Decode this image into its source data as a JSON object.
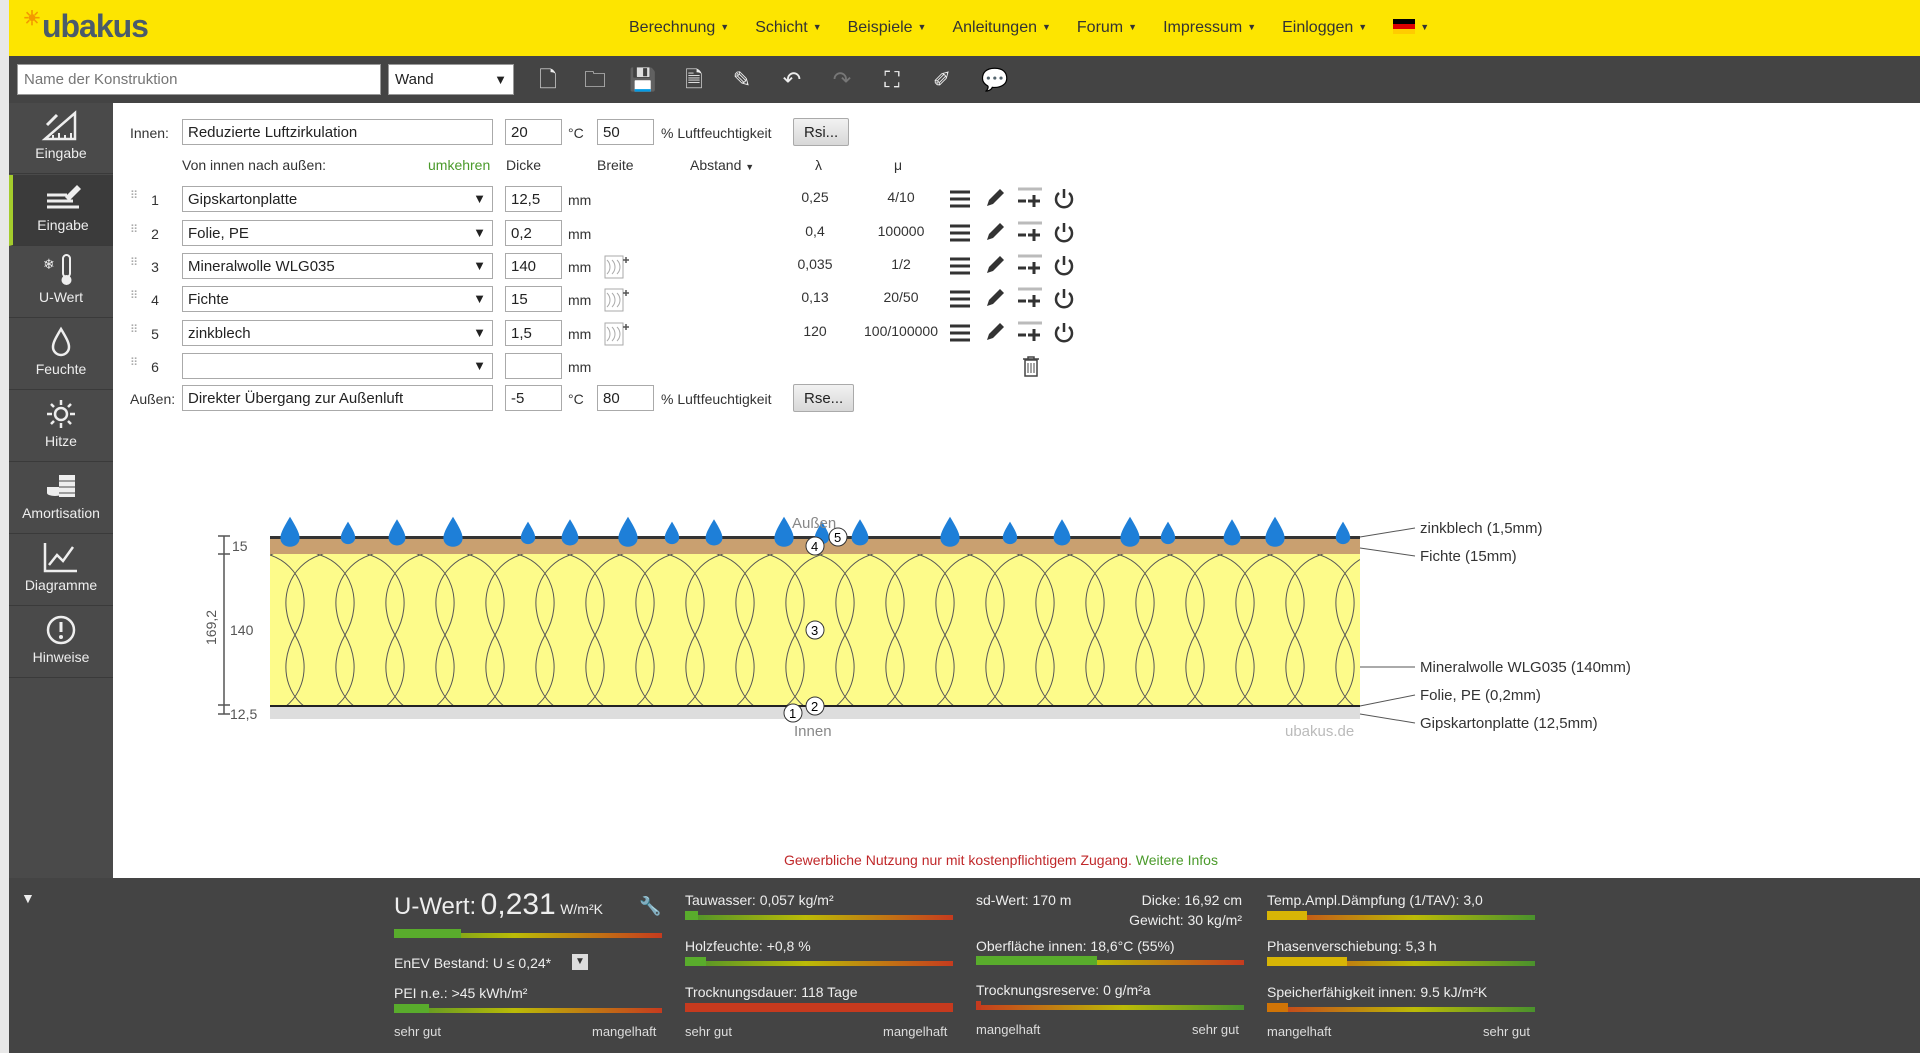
{
  "logo": "ubakus",
  "nav": [
    {
      "label": "Berechnung"
    },
    {
      "label": "Schicht"
    },
    {
      "label": "Beispiele"
    },
    {
      "label": "Anleitungen"
    },
    {
      "label": "Forum"
    },
    {
      "label": "Impressum"
    },
    {
      "label": "Einloggen"
    }
  ],
  "toolbar": {
    "name_placeholder": "Name der Konstruktion",
    "type_value": "Wand",
    "icons": [
      "new-file-icon",
      "open-folder-icon",
      "save-icon",
      "pdf-icon",
      "edit-icon",
      "undo-icon",
      "redo-icon",
      "fullscreen-icon",
      "brush-icon",
      "comment-icon"
    ]
  },
  "sidebar": [
    {
      "label": "Eingabe",
      "icon": "ruler-icon"
    },
    {
      "label": "Eingabe",
      "icon": "layers-edit-icon"
    },
    {
      "label": "U-Wert",
      "icon": "thermometer-icon"
    },
    {
      "label": "Feuchte",
      "icon": "drop-icon"
    },
    {
      "label": "Hitze",
      "icon": "sun-icon"
    },
    {
      "label": "Amortisation",
      "icon": "coins-icon"
    },
    {
      "label": "Diagramme",
      "icon": "chart-icon"
    },
    {
      "label": "Hinweise",
      "icon": "alert-icon"
    }
  ],
  "form": {
    "innen_label": "Innen:",
    "innen_value": "Reduzierte Luftzirkulation",
    "innen_temp": "20",
    "innen_hum": "50",
    "temp_unit": "°C",
    "hum_label": "% Luftfeuchtigkeit",
    "rsi_button": "Rsi...",
    "direction_label": "Von innen nach außen:",
    "reverse_link": "umkehren",
    "col_dicke": "Dicke",
    "col_breite": "Breite",
    "col_abstand": "Abstand",
    "col_lambda": "λ",
    "col_mu": "μ",
    "unit_mm": "mm",
    "layers": [
      {
        "no": "1",
        "material": "Gipskartonplatte",
        "dicke": "12,5",
        "lambda": "0,25",
        "mu": "4/10"
      },
      {
        "no": "2",
        "material": "Folie, PE",
        "dicke": "0,2",
        "lambda": "0,4",
        "mu": "100000"
      },
      {
        "no": "3",
        "material": "Mineralwolle WLG035",
        "dicke": "140",
        "lambda": "0,035",
        "mu": "1/2"
      },
      {
        "no": "4",
        "material": "Fichte",
        "dicke": "15",
        "lambda": "0,13",
        "mu": "20/50"
      },
      {
        "no": "5",
        "material": "zinkblech",
        "dicke": "1,5",
        "lambda": "120",
        "mu": "100/100000"
      },
      {
        "no": "6",
        "material": "",
        "dicke": "",
        "lambda": "",
        "mu": ""
      }
    ],
    "aussen_label": "Außen:",
    "aussen_value": "Direkter Übergang zur Außenluft",
    "aussen_temp": "-5",
    "aussen_hum": "80",
    "rse_button": "Rse..."
  },
  "diagram": {
    "label_aussen": "Außen",
    "label_innen": "Innen",
    "watermark": "ubakus.de",
    "total": "169,2",
    "dim_15": "15",
    "dim_140": "140",
    "dim_125": "12,5",
    "legend": [
      "zinkblech (1,5mm)",
      "Fichte (15mm)",
      "Mineralwolle WLG035 (140mm)",
      "Folie, PE (0,2mm)",
      "Gipskartonplatte (12,5mm)"
    ],
    "markers": [
      "1",
      "2",
      "3",
      "4",
      "5"
    ]
  },
  "notice": {
    "text": "Gewerbliche Nutzung nur mit kostenpflichtigem Zugang.",
    "link": "Weitere Infos"
  },
  "results": {
    "uwert_label": "U-Wert:",
    "uwert_value": "0,231",
    "uwert_unit": "W/m²K",
    "enev": "EnEV Bestand: U ≤ 0,24*",
    "pei": "PEI n.e.: >45 kWh/m²",
    "tauwasser": "Tauwasser: 0,057 kg/m²",
    "holzfeuchte": "Holzfeuchte: +0,8 %",
    "trocknungsdauer": "Trocknungsdauer: 118 Tage",
    "sdwert": "sd-Wert: 170 m",
    "dicke": "Dicke: 16,92 cm",
    "gewicht": "Gewicht: 30 kg/m²",
    "oberflaeche": "Oberfläche innen: 18,6°C (55%)",
    "reserve": "Trocknungsreserve: 0 g/m²a",
    "tav": "Temp.Ampl.Dämpfung (1/TAV): 3,0",
    "phase": "Phasenverschiebung: 5,3 h",
    "speicher": "Speicherfähigkeit innen: 9.5 kJ/m²K",
    "sehr_gut": "sehr gut",
    "mangelhaft": "mangelhaft",
    "levels": {
      "uwert": 0.25,
      "pei": 0.13,
      "tauwasser": 0.05,
      "holzfeuchte": 0.08,
      "trocknungsdauer": 1.0,
      "oberflaeche": 0.45,
      "reserve": 0.02,
      "tav": 0.15,
      "phase": 0.3,
      "speicher": 0.08
    }
  },
  "colors": {
    "brand": "#fde500",
    "dark": "#444444",
    "insulation": "#fdfb8a",
    "wood": "#c9a070",
    "good": "#4a9a2a",
    "bad": "#d53a1a"
  }
}
